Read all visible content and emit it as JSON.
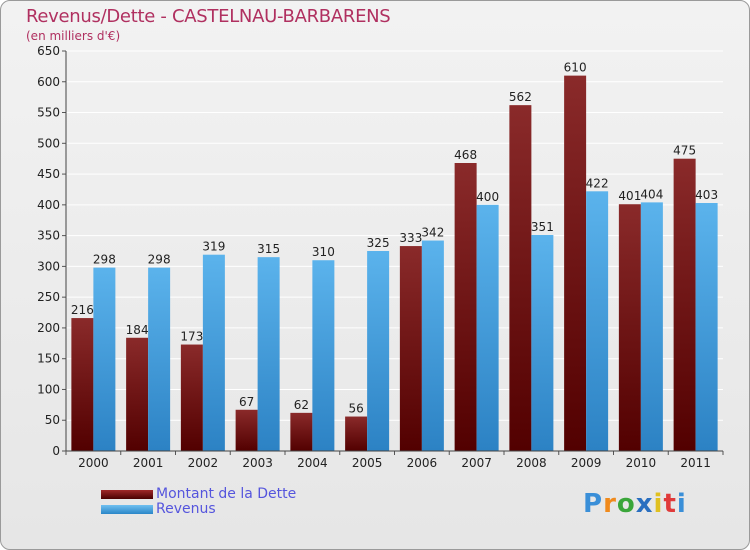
{
  "chart_data": {
    "type": "bar",
    "title": "Revenus/Dette - CASTELNAU-BARBARENS",
    "subtitle": "(en milliers d'€)",
    "categories": [
      "2000",
      "2001",
      "2002",
      "2003",
      "2004",
      "2005",
      "2006",
      "2007",
      "2008",
      "2009",
      "2010",
      "2011"
    ],
    "series": [
      {
        "name": "Montant de la Dette",
        "color": "#7a1a1a",
        "values": [
          216,
          184,
          173,
          67,
          62,
          56,
          333,
          468,
          562,
          610,
          401,
          475
        ]
      },
      {
        "name": "Revenus",
        "color": "#4aa3e0",
        "values": [
          298,
          298,
          319,
          315,
          310,
          325,
          342,
          400,
          351,
          422,
          404,
          403
        ]
      }
    ],
    "ylim": [
      0,
      650
    ],
    "yticks": [
      0,
      50,
      100,
      150,
      200,
      250,
      300,
      350,
      400,
      450,
      500,
      550,
      600,
      650
    ],
    "grid": true,
    "legend": "bottom-left"
  },
  "logo": {
    "text": "Proxiti"
  }
}
